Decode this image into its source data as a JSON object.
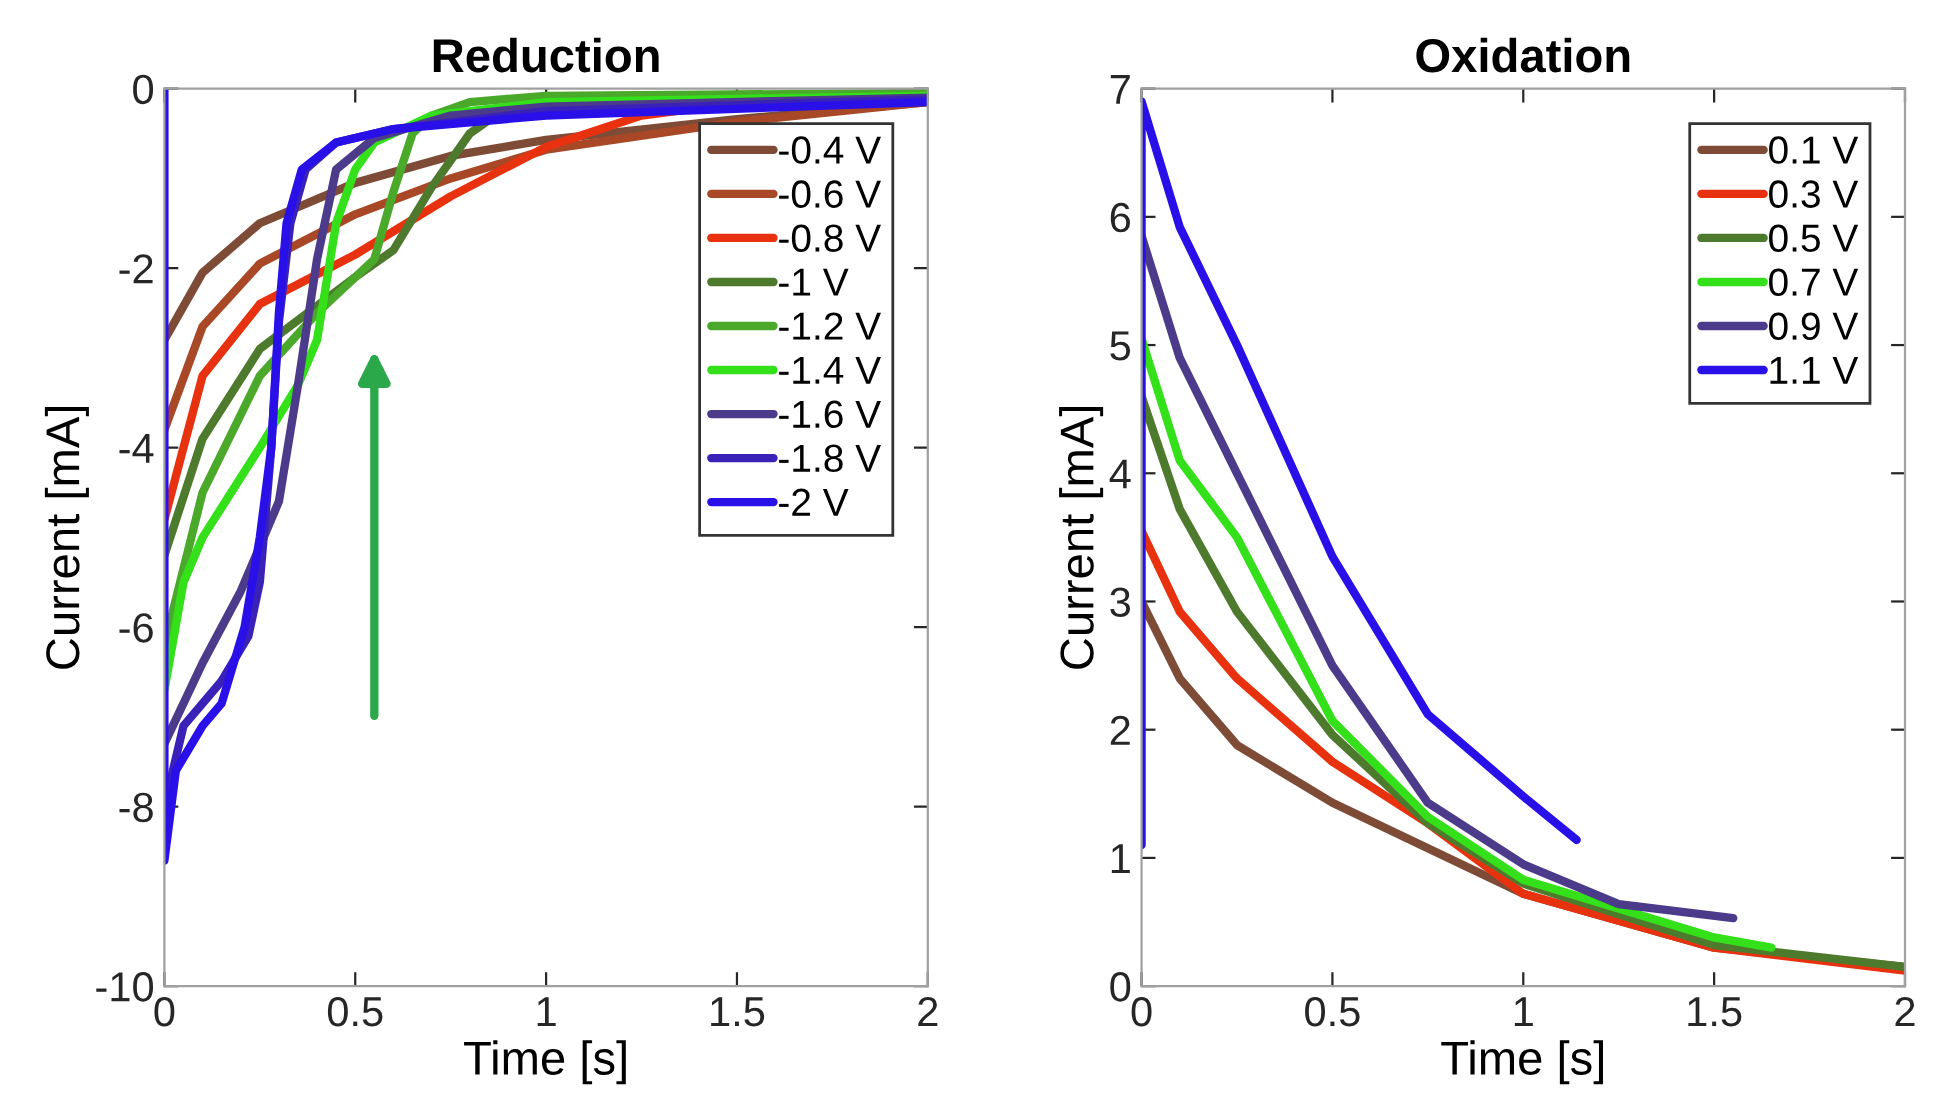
{
  "chart_data": [
    {
      "type": "line",
      "title": "Reduction",
      "xlabel": "Time [s]",
      "ylabel": "Current [mA]",
      "xlim": [
        0,
        2
      ],
      "ylim": [
        -10,
        0
      ],
      "xticks": [
        0,
        0.5,
        1,
        1.5,
        2
      ],
      "yticks": [
        -10,
        -8,
        -6,
        -4,
        -2,
        0
      ],
      "legend": "top right",
      "grid": false,
      "line_style": "solid",
      "series": [
        {
          "name": "-0.4 V",
          "color": "#7e4b36",
          "x": [
            0,
            0.1,
            0.25,
            0.5,
            0.75,
            1,
            1.5,
            2
          ],
          "values": [
            -2.8,
            -2.05,
            -1.5,
            -1.05,
            -0.75,
            -0.57,
            -0.34,
            -0.15
          ]
        },
        {
          "name": "-0.6 V",
          "color": "#a94826",
          "x": [
            0,
            0.1,
            0.25,
            0.5,
            0.75,
            1,
            1.5,
            2
          ],
          "values": [
            -3.8,
            -2.65,
            -1.95,
            -1.4,
            -1.0,
            -0.68,
            -0.37,
            -0.15
          ]
        },
        {
          "name": "-0.8 V",
          "color": "#e8320f",
          "x": [
            0,
            0.1,
            0.25,
            0.5,
            0.75,
            1,
            1.25,
            1.5,
            2
          ],
          "values": [
            -4.8,
            -3.2,
            -2.4,
            -1.85,
            -1.2,
            -0.65,
            -0.3,
            -0.16,
            -0.1
          ]
        },
        {
          "name": "-1 V",
          "color": "#4e7a2e",
          "x": [
            0,
            0.1,
            0.25,
            0.5,
            0.6,
            0.7,
            0.8,
            0.9,
            1,
            2
          ],
          "values": [
            -5.2,
            -3.9,
            -2.9,
            -2.1,
            -1.8,
            -1.1,
            -0.5,
            -0.2,
            -0.1,
            -0.05
          ]
        },
        {
          "name": "-1.2 V",
          "color": "#4aa82a",
          "x": [
            0,
            0.1,
            0.25,
            0.4,
            0.55,
            0.6,
            0.65,
            0.7,
            0.8,
            1,
            2
          ],
          "values": [
            -6.2,
            -4.5,
            -3.2,
            -2.5,
            -1.9,
            -1.15,
            -0.5,
            -0.3,
            -0.15,
            -0.08,
            -0.05
          ]
        },
        {
          "name": "-1.4 V",
          "color": "#33e01a",
          "x": [
            0,
            0.05,
            0.1,
            0.25,
            0.35,
            0.4,
            0.45,
            0.5,
            0.55,
            0.7,
            1,
            2
          ],
          "values": [
            -6.7,
            -5.5,
            -5.0,
            -4.0,
            -3.3,
            -2.8,
            -1.5,
            -0.9,
            -0.6,
            -0.3,
            -0.15,
            -0.08
          ]
        },
        {
          "name": "-1.6 V",
          "color": "#4c3a8a",
          "x": [
            0,
            0.1,
            0.2,
            0.3,
            0.35,
            0.4,
            0.45,
            0.55,
            0.75,
            1,
            2
          ],
          "values": [
            -7.3,
            -6.4,
            -5.6,
            -4.6,
            -3.3,
            -1.9,
            -0.9,
            -0.55,
            -0.3,
            -0.2,
            -0.1
          ]
        },
        {
          "name": "-1.8 V",
          "color": "#3a22b8",
          "x": [
            0,
            0.05,
            0.15,
            0.22,
            0.25,
            0.28,
            0.3,
            0.33,
            0.37,
            0.45,
            0.6,
            1,
            2
          ],
          "values": [
            -8.0,
            -7.1,
            -6.6,
            -6.1,
            -5.5,
            -4.0,
            -2.6,
            -1.5,
            -0.9,
            -0.6,
            -0.45,
            -0.25,
            -0.12
          ]
        },
        {
          "name": "-2 V",
          "color": "#2a10e8",
          "x": [
            0,
            0,
            0.03,
            0.1,
            0.15,
            0.21,
            0.25,
            0.28,
            0.3,
            0.32,
            0.36,
            0.45,
            0.6,
            1,
            2
          ],
          "values": [
            0,
            -8.6,
            -7.6,
            -7.1,
            -6.85,
            -6.0,
            -5.0,
            -4.0,
            -2.5,
            -1.5,
            -0.9,
            -0.6,
            -0.45,
            -0.3,
            -0.15
          ]
        }
      ]
    },
    {
      "type": "line",
      "title": "Oxidation",
      "xlabel": "Time [s]",
      "ylabel": "Current [mA]",
      "xlim": [
        0,
        2
      ],
      "ylim": [
        0,
        7
      ],
      "xticks": [
        0,
        0.5,
        1,
        1.5,
        2
      ],
      "yticks": [
        0,
        1,
        2,
        3,
        4,
        5,
        6,
        7
      ],
      "legend": "top right",
      "grid": false,
      "line_style": "solid",
      "series": [
        {
          "name": "0.1 V",
          "color": "#7e4b36",
          "x": [
            0,
            0.1,
            0.25,
            0.5,
            1,
            1.5,
            2
          ],
          "values": [
            3.0,
            2.4,
            1.88,
            1.43,
            0.72,
            0.3,
            0.15
          ]
        },
        {
          "name": "0.3 V",
          "color": "#e8320f",
          "x": [
            0,
            0.1,
            0.25,
            0.5,
            0.75,
            1,
            1.5,
            2
          ],
          "values": [
            3.55,
            2.92,
            2.4,
            1.75,
            1.27,
            0.72,
            0.3,
            0.12
          ]
        },
        {
          "name": "0.5 V",
          "color": "#4e7a2e",
          "x": [
            0,
            0.1,
            0.25,
            0.5,
            0.75,
            1,
            1.5,
            2
          ],
          "values": [
            4.6,
            3.72,
            2.92,
            1.96,
            1.27,
            0.8,
            0.32,
            0.15
          ]
        },
        {
          "name": "0.7 V",
          "color": "#33e01a",
          "x": [
            0,
            0.1,
            0.25,
            0.5,
            0.75,
            1,
            1.5,
            1.65
          ],
          "values": [
            5.05,
            4.1,
            3.5,
            2.07,
            1.32,
            0.83,
            0.38,
            0.3
          ]
        },
        {
          "name": "0.9 V",
          "color": "#4c3a8a",
          "x": [
            0,
            0.1,
            0.25,
            0.5,
            0.75,
            1,
            1.25,
            1.55
          ],
          "values": [
            5.85,
            4.9,
            4.0,
            2.5,
            1.43,
            0.95,
            0.64,
            0.53
          ]
        },
        {
          "name": "1.1 V",
          "color": "#2a10e8",
          "x": [
            0,
            0,
            0.1,
            0.25,
            0.5,
            0.75,
            1,
            1.14
          ],
          "values": [
            1.1,
            6.9,
            5.92,
            5.0,
            3.35,
            2.12,
            1.48,
            1.14
          ]
        }
      ]
    }
  ]
}
